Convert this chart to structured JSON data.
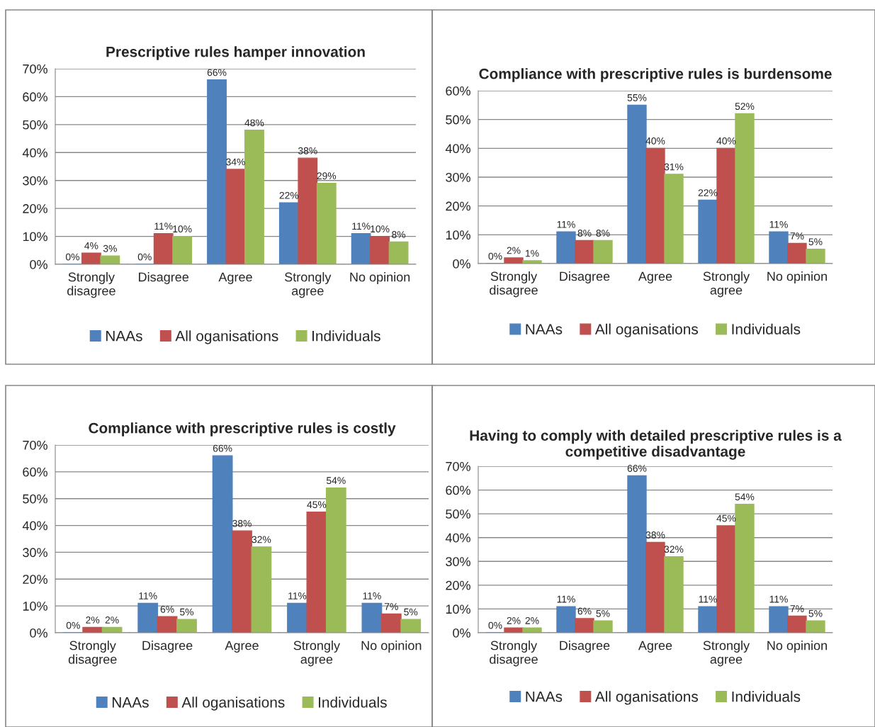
{
  "chart_data": [
    {
      "type": "bar",
      "title": "Prescriptive rules hamper innovation",
      "categories": [
        "Strongly\ndisagree",
        "Disagree",
        "Agree",
        "Strongly\nagree",
        "No opinion"
      ],
      "series": [
        {
          "name": "NAAs",
          "color": "#4f81bd",
          "values": [
            0,
            0,
            66,
            22,
            11
          ],
          "value_labels": [
            "0%",
            "0%",
            "66%",
            "22%",
            "11%"
          ]
        },
        {
          "name": "All oganisations",
          "color": "#c0504d",
          "values": [
            4,
            11,
            34,
            38,
            10
          ],
          "value_labels": [
            "4%",
            "11%",
            "34%",
            "38%",
            "10%"
          ]
        },
        {
          "name": "Individuals",
          "color": "#9bbb59",
          "values": [
            3,
            10,
            48,
            29,
            8
          ],
          "value_labels": [
            "3%",
            "10%",
            "48%",
            "29%",
            "8%"
          ]
        }
      ],
      "ylim": [
        0,
        70
      ],
      "yticks": [
        {
          "value": 0,
          "label": "0%"
        },
        {
          "value": 10,
          "label": "10%"
        },
        {
          "value": 20,
          "label": "20%"
        },
        {
          "value": 30,
          "label": "30%"
        },
        {
          "value": 40,
          "label": "40%"
        },
        {
          "value": 50,
          "label": "50%"
        },
        {
          "value": 60,
          "label": "60%"
        },
        {
          "value": 70,
          "label": "70%"
        }
      ],
      "grid": "y",
      "legend": "bottom"
    },
    {
      "type": "bar",
      "title": "Compliance with prescriptive rules is burdensome",
      "categories": [
        "Strongly\ndisagree",
        "Disagree",
        "Agree",
        "Strongly\nagree",
        "No opinion"
      ],
      "series": [
        {
          "name": "NAAs",
          "color": "#4f81bd",
          "values": [
            0,
            11,
            55,
            22,
            11
          ],
          "value_labels": [
            "0%",
            "11%",
            "55%",
            "22%",
            "11%"
          ]
        },
        {
          "name": "All oganisations",
          "color": "#c0504d",
          "values": [
            2,
            8,
            40,
            40,
            7
          ],
          "value_labels": [
            "2%",
            "8%",
            "40%",
            "40%",
            "7%"
          ]
        },
        {
          "name": "Individuals",
          "color": "#9bbb59",
          "values": [
            1,
            8,
            31,
            52,
            5
          ],
          "value_labels": [
            "1%",
            "8%",
            "31%",
            "52%",
            "5%"
          ]
        }
      ],
      "ylim": [
        0,
        60
      ],
      "yticks": [
        {
          "value": 0,
          "label": "0%"
        },
        {
          "value": 10,
          "label": "10%"
        },
        {
          "value": 20,
          "label": "20%"
        },
        {
          "value": 30,
          "label": "30%"
        },
        {
          "value": 40,
          "label": "40%"
        },
        {
          "value": 50,
          "label": "50%"
        },
        {
          "value": 60,
          "label": "60%"
        }
      ],
      "grid": "y",
      "legend": "bottom"
    },
    {
      "type": "bar",
      "title": "Compliance with prescriptive rules is costly",
      "categories": [
        "Strongly\ndisagree",
        "Disagree",
        "Agree",
        "Strongly\nagree",
        "No opinion"
      ],
      "series": [
        {
          "name": "NAAs",
          "color": "#4f81bd",
          "values": [
            0,
            11,
            66,
            11,
            11
          ],
          "value_labels": [
            "0%",
            "11%",
            "66%",
            "11%",
            "11%"
          ]
        },
        {
          "name": "All oganisations",
          "color": "#c0504d",
          "values": [
            2,
            6,
            38,
            45,
            7
          ],
          "value_labels": [
            "2%",
            "6%",
            "38%",
            "45%",
            "7%"
          ]
        },
        {
          "name": "Individuals",
          "color": "#9bbb59",
          "values": [
            2,
            5,
            32,
            54,
            5
          ],
          "value_labels": [
            "2%",
            "5%",
            "32%",
            "54%",
            "5%"
          ]
        }
      ],
      "ylim": [
        0,
        70
      ],
      "yticks": [
        {
          "value": 0,
          "label": "0%"
        },
        {
          "value": 10,
          "label": "10%"
        },
        {
          "value": 20,
          "label": "20%"
        },
        {
          "value": 30,
          "label": "30%"
        },
        {
          "value": 40,
          "label": "40%"
        },
        {
          "value": 50,
          "label": "50%"
        },
        {
          "value": 60,
          "label": "60%"
        },
        {
          "value": 70,
          "label": "70%"
        }
      ],
      "grid": "y",
      "legend": "bottom"
    },
    {
      "type": "bar",
      "title": "Having to comply with detailed prescriptive rules is a competitive disadvantage",
      "categories": [
        "Strongly\ndisagree",
        "Disagree",
        "Agree",
        "Strongly\nagree",
        "No opinion"
      ],
      "series": [
        {
          "name": "NAAs",
          "color": "#4f81bd",
          "values": [
            0,
            11,
            66,
            11,
            11
          ],
          "value_labels": [
            "0%",
            "11%",
            "66%",
            "11%",
            "11%"
          ]
        },
        {
          "name": "All oganisations",
          "color": "#c0504d",
          "values": [
            2,
            6,
            38,
            45,
            7
          ],
          "value_labels": [
            "2%",
            "6%",
            "38%",
            "45%",
            "7%"
          ]
        },
        {
          "name": "Individuals",
          "color": "#9bbb59",
          "values": [
            2,
            5,
            32,
            54,
            5
          ],
          "value_labels": [
            "2%",
            "5%",
            "32%",
            "54%",
            "5%"
          ]
        }
      ],
      "ylim": [
        0,
        70
      ],
      "yticks": [
        {
          "value": 0,
          "label": "0%"
        },
        {
          "value": 10,
          "label": "10%"
        },
        {
          "value": 20,
          "label": "20%"
        },
        {
          "value": 30,
          "label": "30%"
        },
        {
          "value": 40,
          "label": "40%"
        },
        {
          "value": 50,
          "label": "50%"
        },
        {
          "value": 60,
          "label": "60%"
        },
        {
          "value": 70,
          "label": "70%"
        }
      ],
      "grid": "y",
      "legend": "bottom"
    }
  ]
}
